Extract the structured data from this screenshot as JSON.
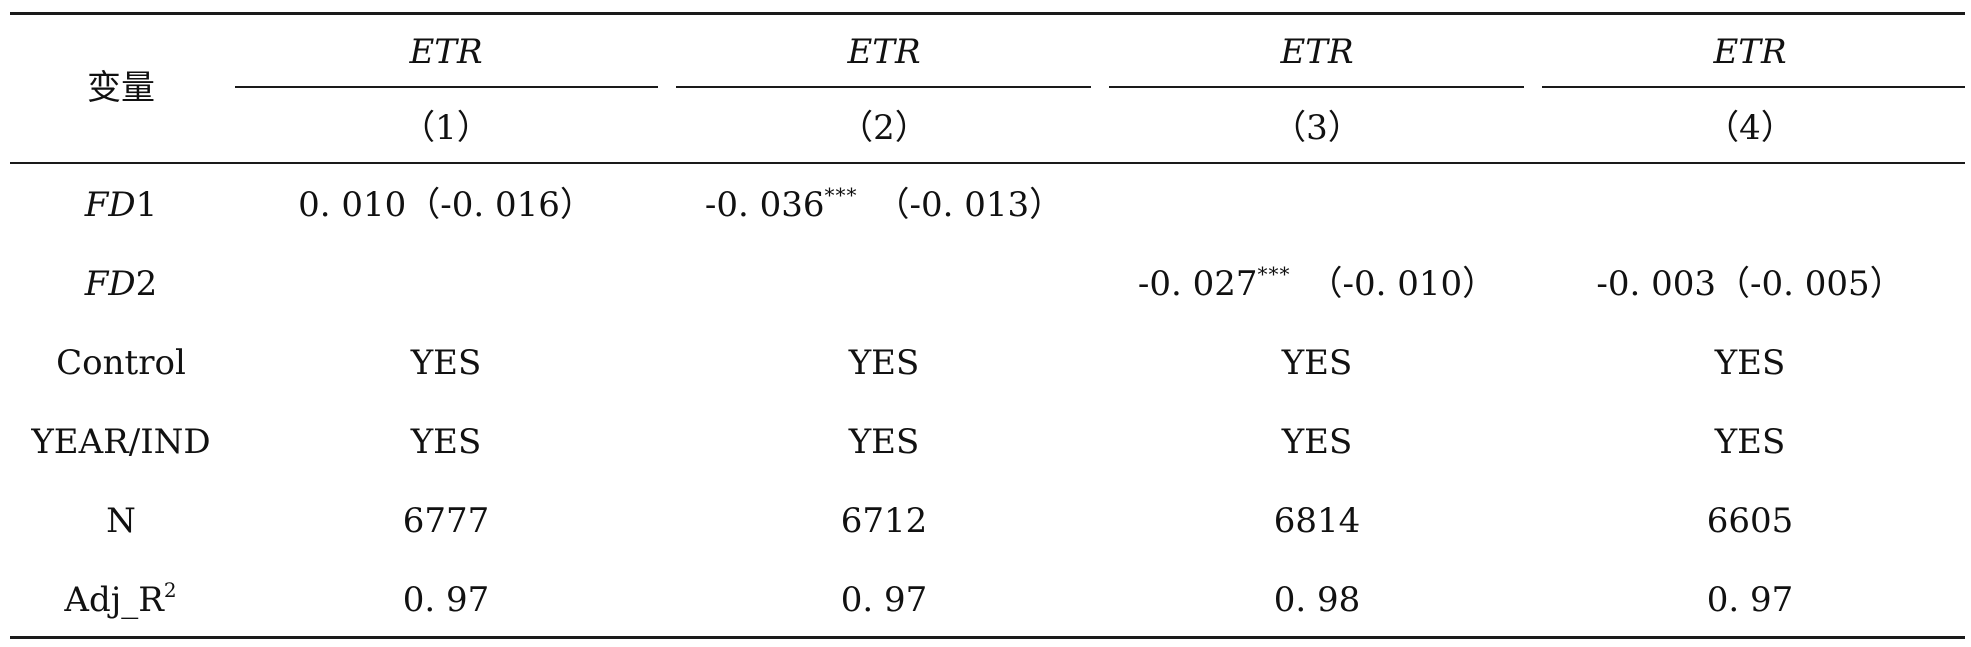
{
  "table": {
    "header": {
      "var_label": "变量",
      "columns": [
        {
          "dep": "ETR",
          "num": "（1）"
        },
        {
          "dep": "ETR",
          "num": "（2）"
        },
        {
          "dep": "ETR",
          "num": "（3）"
        },
        {
          "dep": "ETR",
          "num": "（4）"
        }
      ]
    },
    "rows": {
      "fd1": {
        "label_italic": "FD",
        "label_tail": "1",
        "c1": "0. 010（-0. 016）",
        "c2_coef": "-0. 036",
        "c2_stars": "***",
        "c2_se": "（-0. 013）"
      },
      "fd2": {
        "label_italic": "FD",
        "label_tail": "2",
        "c3_coef": "-0. 027",
        "c3_stars": "***",
        "c3_se": "（-0. 010）",
        "c4": "-0. 003（-0. 005）"
      },
      "control": {
        "label": "Control",
        "values": [
          "YES",
          "YES",
          "YES",
          "YES"
        ]
      },
      "year_ind": {
        "label": "YEAR/IND",
        "values": [
          "YES",
          "YES",
          "YES",
          "YES"
        ]
      },
      "n": {
        "label": "N",
        "values": [
          "6777",
          "6712",
          "6814",
          "6605"
        ]
      },
      "adj_r2": {
        "label_base": "Adj_R",
        "label_sup": "2",
        "values": [
          "0. 97",
          "0. 97",
          "0. 98",
          "0. 97"
        ]
      }
    }
  }
}
